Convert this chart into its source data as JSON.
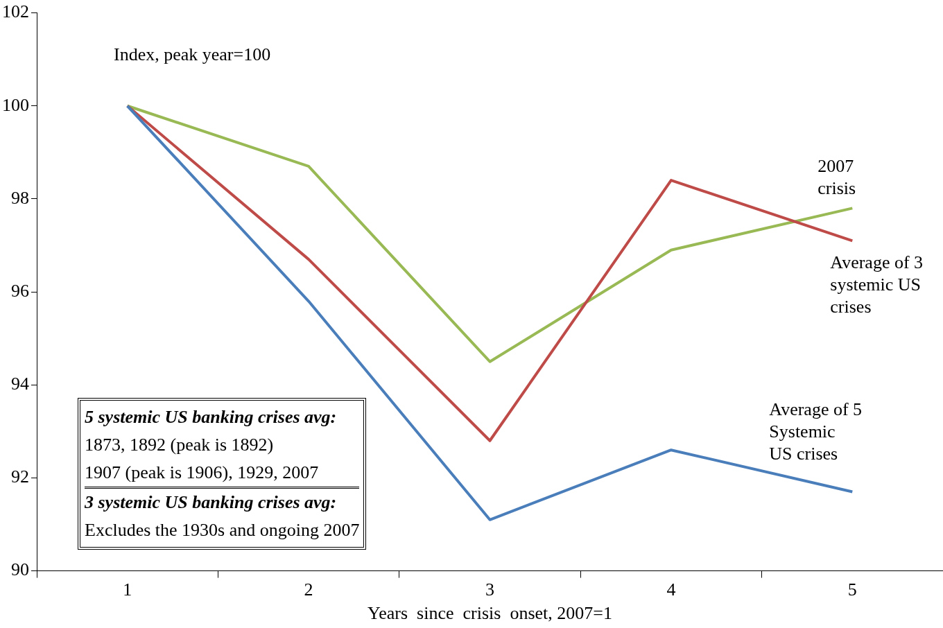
{
  "chart_data": {
    "type": "line",
    "xlabel": "Years  since  crisis  onset, 2007=1",
    "categories": [
      "1",
      "2",
      "3",
      "4",
      "5"
    ],
    "series": [
      {
        "name": "Average of 5 Systemic US crises",
        "color": "#4a7ebb",
        "values": [
          100,
          95.8,
          91.1,
          92.6,
          91.7
        ]
      },
      {
        "name": "Average of 3 systemic US crises",
        "color": "#be4b48",
        "values": [
          100,
          96.7,
          92.8,
          98.4,
          97.1
        ]
      },
      {
        "name": "2007 crisis",
        "color": "#98b954",
        "values": [
          100,
          98.7,
          94.5,
          96.9,
          97.8
        ]
      }
    ],
    "ylim": [
      90,
      102
    ],
    "yticks": [
      90,
      92,
      94,
      96,
      98,
      100,
      102
    ],
    "grid": false,
    "legend": false,
    "marker": "none",
    "line_style": "solid",
    "annotations": [
      "Index, peak year=100",
      "5 systemic US banking crises avg:",
      "1873, 1892 (peak is 1892)",
      "1907 (peak is 1906), 1929, 2007",
      "3 systemic US banking crises avg:",
      "Excludes the 1930s and ongoing 2007"
    ]
  }
}
